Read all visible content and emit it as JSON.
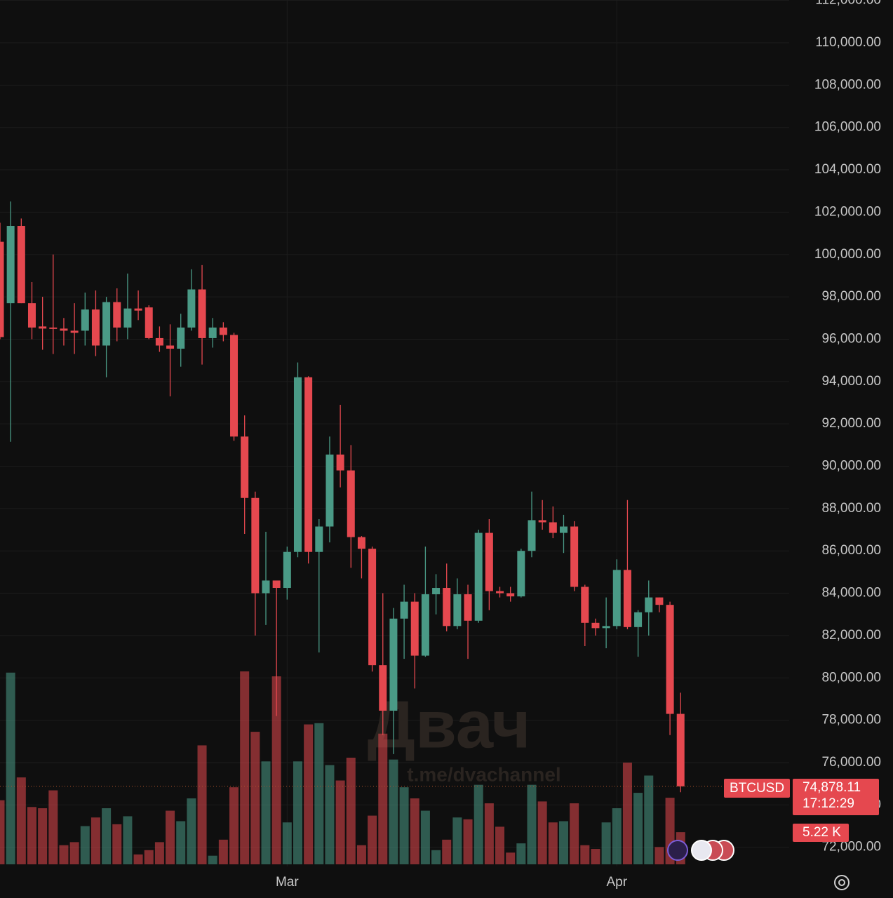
{
  "chart_data": {
    "type": "candlestick",
    "symbol": "BTCUSD",
    "categories": [
      null,
      null,
      null,
      null,
      null,
      null,
      null,
      null,
      null,
      null,
      null,
      null,
      null,
      null,
      null,
      null,
      null,
      null,
      null,
      null,
      null,
      null,
      null,
      null,
      null,
      null,
      null,
      "Mar",
      null,
      null,
      null,
      null,
      null,
      null,
      null,
      null,
      null,
      null,
      null,
      null,
      null,
      null,
      null,
      null,
      null,
      null,
      null,
      null,
      null,
      null,
      null,
      null,
      null,
      null,
      null,
      null,
      null,
      null,
      "Apr",
      null,
      null,
      null,
      null,
      null,
      null
    ],
    "open": [
      100600,
      97700,
      101350,
      97700,
      96600,
      96550,
      96500,
      96400,
      96400,
      97400,
      95700,
      97750,
      96550,
      97450,
      97500,
      96050,
      95700,
      95550,
      96550,
      98350,
      96050,
      96550,
      96200,
      91400,
      88500,
      84000,
      84600,
      84250,
      85950,
      94200,
      85950,
      87150,
      90550,
      89800,
      86650,
      86100,
      80600,
      78450,
      82800,
      83600,
      81050,
      83950,
      84250,
      82450,
      83950,
      82700,
      86850,
      84100,
      84000,
      83850,
      86000,
      87450,
      87350,
      86850,
      87150,
      84300,
      82600,
      82350,
      82450,
      85100,
      82400,
      83100,
      83800,
      83450,
      78300
    ],
    "high": [
      101500,
      102500,
      101700,
      98700,
      98000,
      100000,
      97000,
      97700,
      98200,
      98300,
      98000,
      98400,
      99100,
      98300,
      97600,
      96600,
      96700,
      97200,
      99300,
      99500,
      97000,
      96800,
      96300,
      92400,
      88800,
      86900,
      84600,
      86200,
      94900,
      94250,
      87500,
      91400,
      92900,
      91000,
      86700,
      86200,
      84000,
      83300,
      84400,
      84000,
      86200,
      84900,
      85400,
      84700,
      84400,
      87000,
      87500,
      84300,
      84300,
      86100,
      88800,
      88400,
      88100,
      87700,
      87400,
      84400,
      82800,
      83800,
      85600,
      88400,
      83200,
      84600,
      83800,
      83600,
      79300
    ],
    "low": [
      96000,
      91150,
      97700,
      96000,
      95500,
      95300,
      95700,
      95300,
      95700,
      95200,
      94200,
      95900,
      96000,
      96900,
      96000,
      95400,
      93300,
      94700,
      96400,
      94800,
      95600,
      95900,
      91200,
      86800,
      82000,
      82500,
      78200,
      83700,
      85700,
      85400,
      81200,
      86400,
      89000,
      85200,
      84700,
      80300,
      77300,
      76400,
      80900,
      79500,
      81000,
      83000,
      82200,
      82300,
      80900,
      82600,
      83200,
      83800,
      83600,
      83800,
      85700,
      87000,
      86600,
      85900,
      84100,
      81500,
      82000,
      81400,
      82300,
      82300,
      81000,
      82000,
      83100,
      77300,
      74600
    ],
    "close": [
      96100,
      101350,
      97700,
      96550,
      96500,
      96500,
      96400,
      96300,
      97400,
      95700,
      97750,
      96550,
      97450,
      97350,
      96050,
      95700,
      95550,
      96550,
      98350,
      96050,
      96550,
      96200,
      91400,
      88500,
      84000,
      84600,
      84250,
      85950,
      94200,
      85950,
      87150,
      90550,
      89800,
      86650,
      86100,
      80600,
      78450,
      82800,
      83600,
      81050,
      83950,
      84250,
      82450,
      83950,
      82700,
      86850,
      84100,
      84000,
      83850,
      86000,
      87450,
      87350,
      86850,
      87150,
      84300,
      82600,
      82350,
      82450,
      85100,
      82400,
      83100,
      83800,
      83450,
      78300,
      74878.11
    ],
    "volume": [
      10.4,
      31.1,
      14.1,
      9.3,
      9.1,
      12.0,
      3.1,
      3.6,
      6.2,
      7.6,
      9.1,
      6.5,
      7.8,
      1.6,
      2.3,
      3.6,
      8.7,
      7.0,
      10.7,
      19.3,
      1.4,
      4.0,
      12.5,
      31.3,
      21.5,
      16.7,
      30.5,
      6.8,
      16.7,
      22.7,
      22.9,
      16.1,
      13.6,
      17.3,
      3.1,
      7.9,
      21.2,
      17.0,
      12.5,
      10.7,
      8.7,
      2.3,
      4.0,
      7.6,
      7.3,
      12.9,
      9.9,
      6.1,
      1.9,
      3.4,
      12.9,
      10.2,
      6.8,
      7.0,
      9.9,
      3.1,
      2.5,
      6.8,
      9.1,
      16.5,
      11.6,
      14.4,
      2.8,
      10.8,
      5.22
    ],
    "up_color": "#4a9a86",
    "down_color": "#e5484f",
    "ylim": [
      71094,
      112021
    ],
    "yticks": [
      {
        "value": 72000,
        "label": "72,000.00"
      },
      {
        "value": 74000,
        "label": "74,000.00"
      },
      {
        "value": 76000,
        "label": "76,000.00"
      },
      {
        "value": 78000,
        "label": "78,000.00"
      },
      {
        "value": 80000,
        "label": "80,000.00"
      },
      {
        "value": 82000,
        "label": "82,000.00"
      },
      {
        "value": 84000,
        "label": "84,000.00"
      },
      {
        "value": 86000,
        "label": "86,000.00"
      },
      {
        "value": 88000,
        "label": "88,000.00"
      },
      {
        "value": 90000,
        "label": "90,000.00"
      },
      {
        "value": 92000,
        "label": "92,000.00"
      },
      {
        "value": 94000,
        "label": "94,000.00"
      },
      {
        "value": 96000,
        "label": "96,000.00"
      },
      {
        "value": 98000,
        "label": "98,000.00"
      },
      {
        "value": 100000,
        "label": "100,000.00"
      },
      {
        "value": 102000,
        "label": "102,000.00"
      },
      {
        "value": 104000,
        "label": "104,000.00"
      },
      {
        "value": 106000,
        "label": "106,000.00"
      },
      {
        "value": 108000,
        "label": "108,000.00"
      },
      {
        "value": 110000,
        "label": "110,000.00"
      },
      {
        "value": 112000,
        "label": "112,000.00"
      }
    ],
    "grid": true,
    "price_tag": {
      "value": 74878.11,
      "label": "74,878.11",
      "time": "17:12:29"
    },
    "volume_tag": {
      "value": 5.22,
      "label": "5.22 K"
    },
    "watermark": {
      "title": "Двач",
      "subtitle": "t.me/dvachannel"
    }
  }
}
